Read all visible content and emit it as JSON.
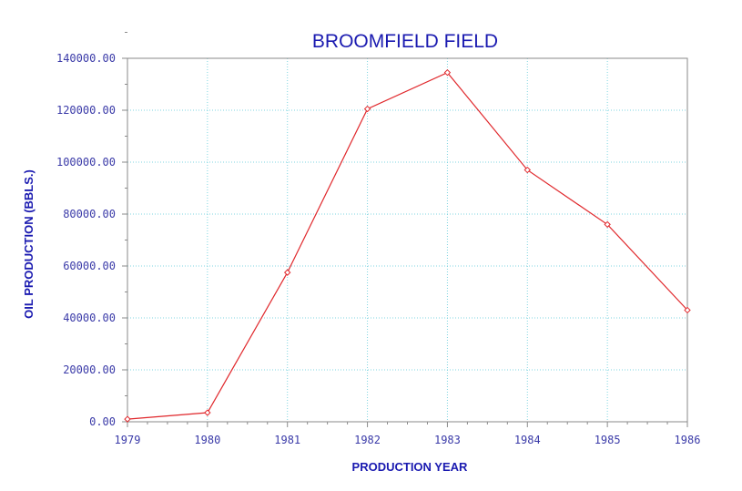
{
  "chart_data": {
    "type": "line",
    "title": "BROOMFIELD FIELD",
    "xlabel": "PRODUCTION YEAR",
    "ylabel": "OIL PRODUCTION (BBLS.)",
    "x": [
      "1979",
      "1980",
      "1981",
      "1982",
      "1983",
      "1984",
      "1985",
      "1986"
    ],
    "series": [
      {
        "values": [
          1000,
          3500,
          57500,
          120500,
          134500,
          97000,
          76000,
          43000
        ]
      }
    ],
    "ylim": [
      0,
      140000
    ],
    "yticks": [
      "0.00",
      "20000.00",
      "40000.00",
      "60000.00",
      "80000.00",
      "100000.00",
      "120000.00",
      "140000.00"
    ],
    "grid": true,
    "colors": {
      "line": "#e0282c",
      "text": "#1a1ab0",
      "grid": "#7fd4e0",
      "axis": "#8a8a8a"
    }
  }
}
